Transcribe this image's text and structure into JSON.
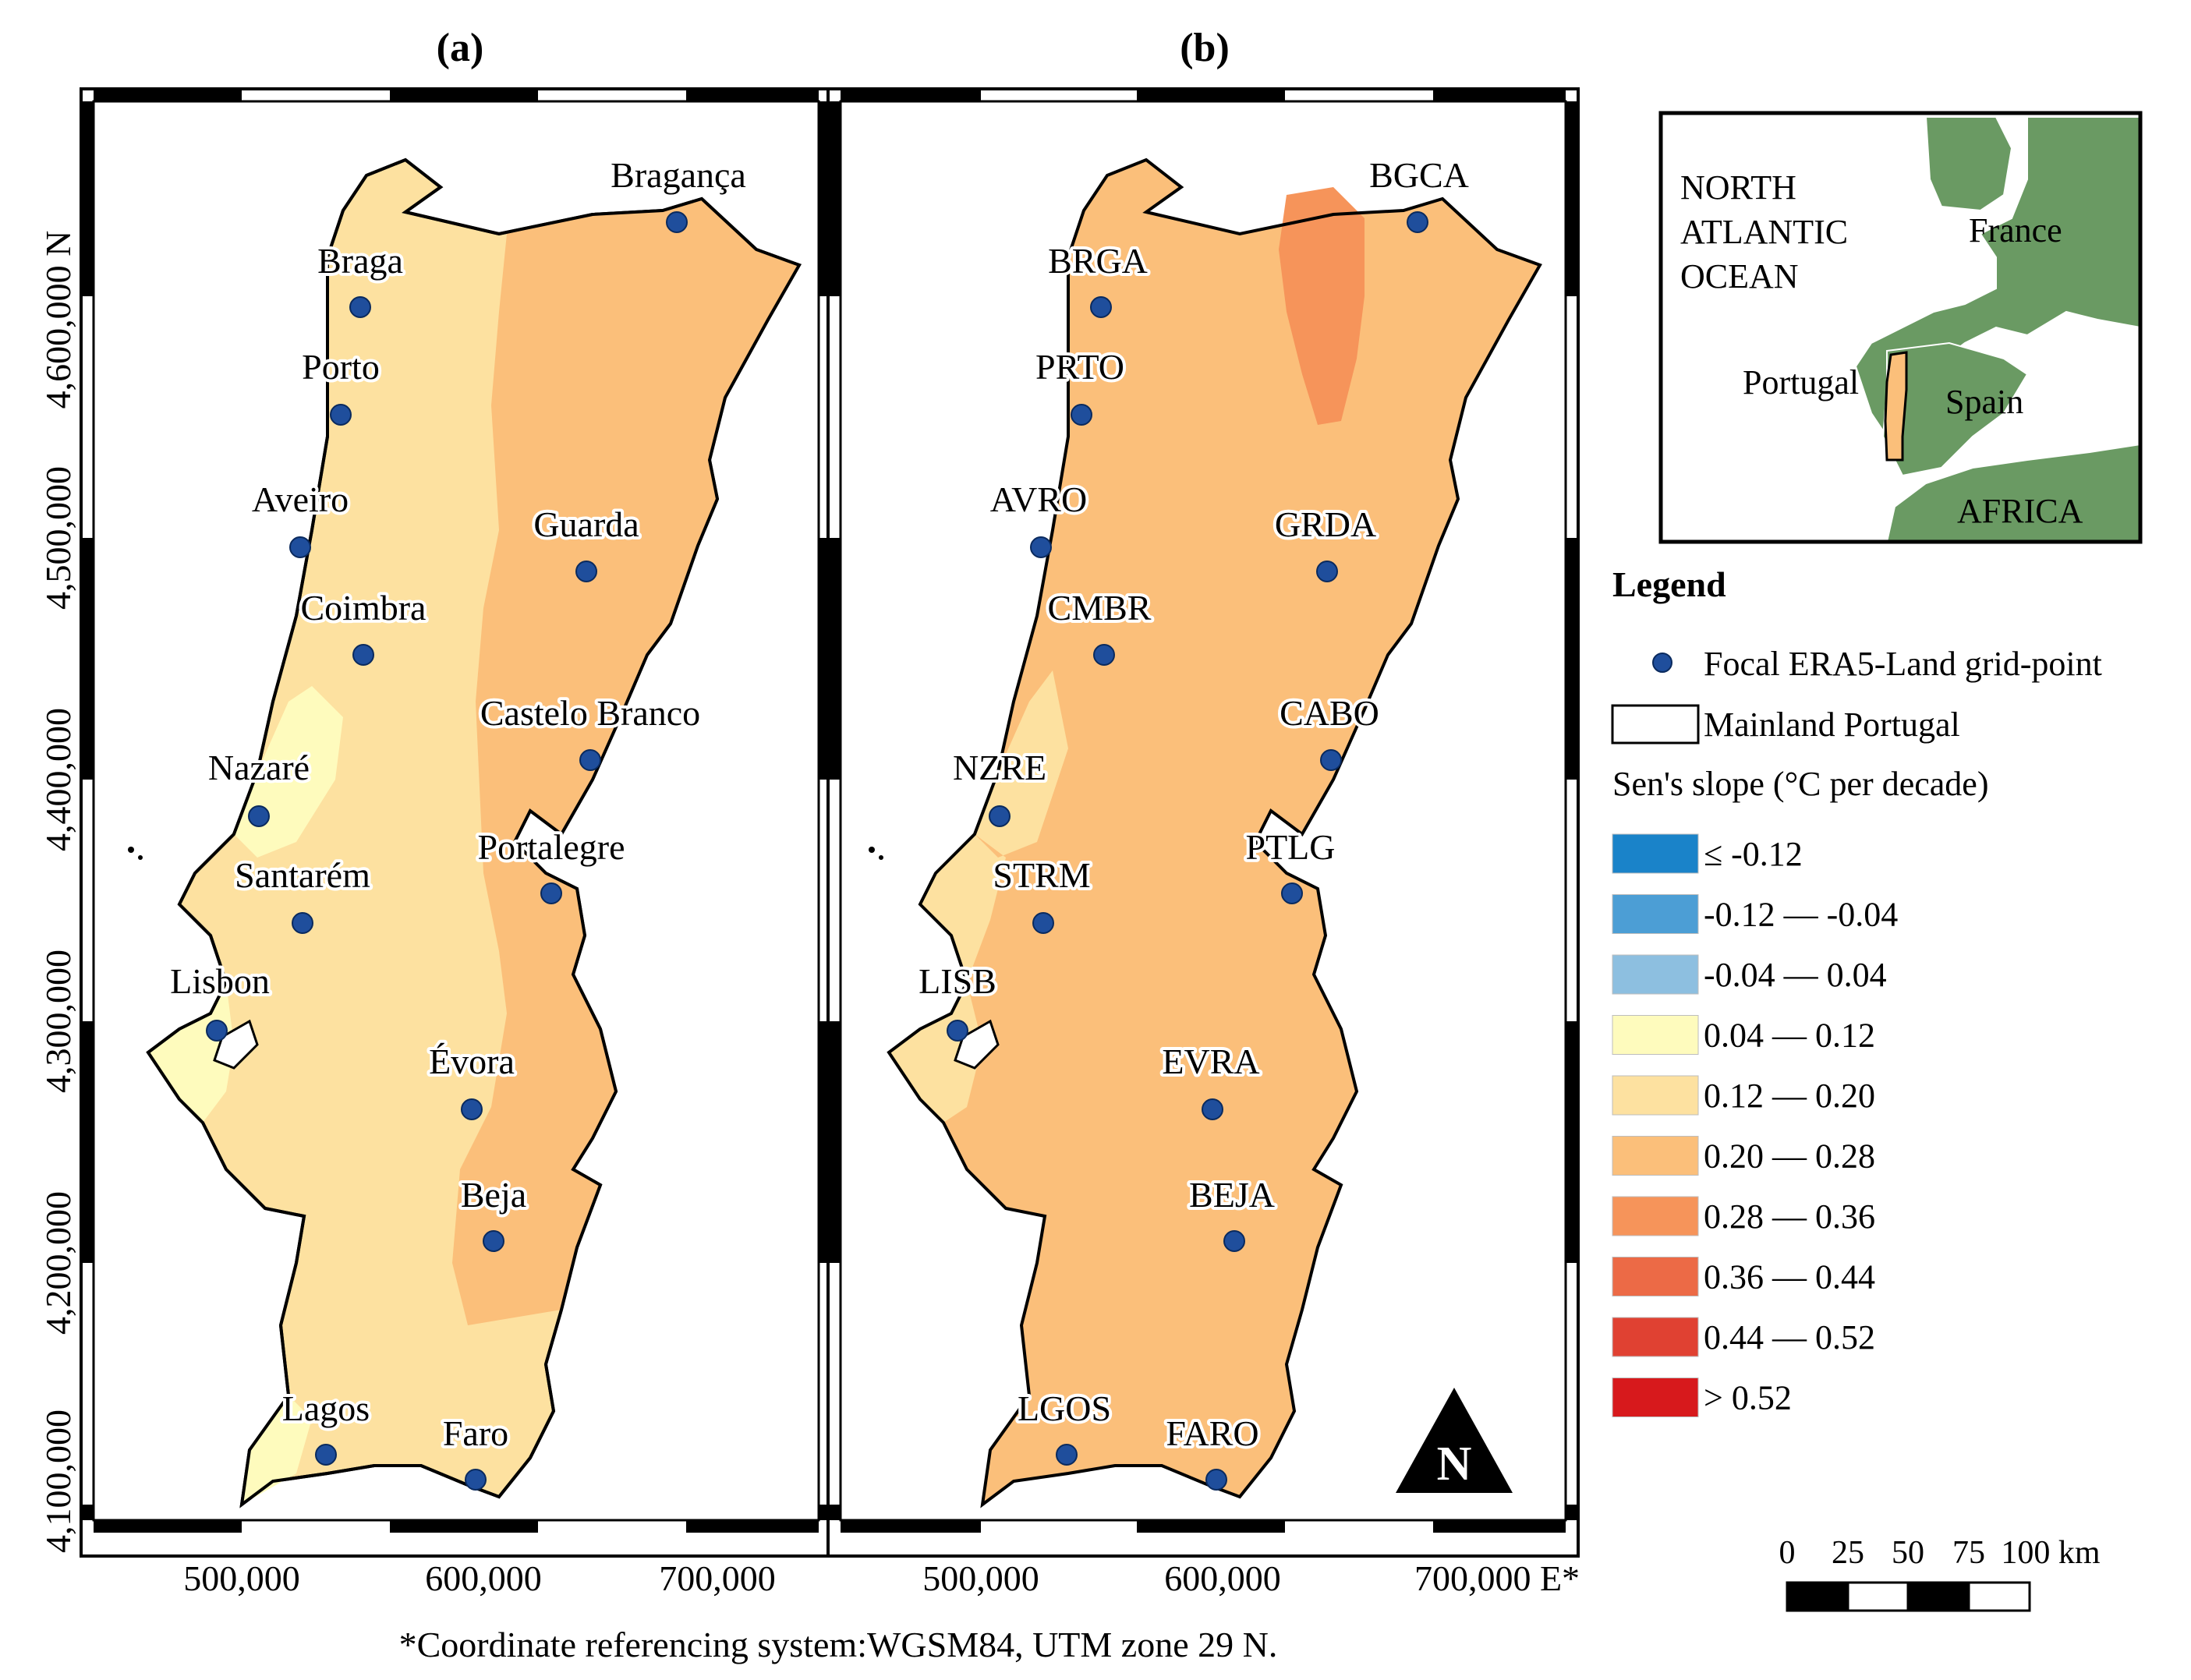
{
  "panels": [
    {
      "id": "a",
      "title": "(a)",
      "cities": [
        {
          "name": "Bragança"
        },
        {
          "name": "Braga"
        },
        {
          "name": "Porto"
        },
        {
          "name": "Aveiro"
        },
        {
          "name": "Guarda"
        },
        {
          "name": "Coimbra"
        },
        {
          "name": "Castelo Branco"
        },
        {
          "name": "Nazaré"
        },
        {
          "name": "Portalegre"
        },
        {
          "name": "Santarém"
        },
        {
          "name": "Lisbon"
        },
        {
          "name": "Évora"
        },
        {
          "name": "Beja"
        },
        {
          "name": "Lagos"
        },
        {
          "name": "Faro"
        }
      ]
    },
    {
      "id": "b",
      "title": "(b)",
      "cities": [
        {
          "name": "BGCA"
        },
        {
          "name": "BRGA"
        },
        {
          "name": "PRTO"
        },
        {
          "name": "AVRO"
        },
        {
          "name": "GRDA"
        },
        {
          "name": "CMBR"
        },
        {
          "name": "CABO"
        },
        {
          "name": "NZRE"
        },
        {
          "name": "PTLG"
        },
        {
          "name": "STRM"
        },
        {
          "name": "LISB"
        },
        {
          "name": "EVRA"
        },
        {
          "name": "BEJA"
        },
        {
          "name": "LGOS"
        },
        {
          "name": "FARO"
        }
      ]
    }
  ],
  "y_ticks": [
    "4,600,000 N",
    "4,500,000",
    "4,400,000",
    "4,300,000",
    "4,200,000",
    "4,100,000"
  ],
  "x_ticks_a": [
    "500,000",
    "600,000",
    "700,000"
  ],
  "x_ticks_b": [
    "500,000",
    "600,000",
    "700,000 E*"
  ],
  "crs_note": "*Coordinate referencing system:WGSM84, UTM zone 29 N.",
  "north_arrow": "N",
  "inset": {
    "labels": {
      "ocean": [
        "NORTH",
        "ATLANTIC",
        "OCEAN"
      ],
      "france": "France",
      "portugal": "Portugal",
      "spain": "Spain",
      "africa": "AFRICA"
    },
    "land_color": "#6a9a63"
  },
  "legend": {
    "title": "Legend",
    "point_label": "Focal ERA5-Land grid-point",
    "boundary_label": "Mainland Portugal",
    "scale_title": "Sen's slope (°C per decade)",
    "classes": [
      {
        "label": "≤ -0.12",
        "color": "#1a83c9"
      },
      {
        "label": "-0.12 — -0.04",
        "color": "#4c9ed5"
      },
      {
        "label": "-0.04 — 0.04",
        "color": "#8dbfe0"
      },
      {
        "label": "0.04 — 0.12",
        "color": "#fefbbd"
      },
      {
        "label": "0.12 — 0.20",
        "color": "#fde1a0"
      },
      {
        "label": "0.20 — 0.28",
        "color": "#fbbf7a"
      },
      {
        "label": "0.28 — 0.36",
        "color": "#f6945a"
      },
      {
        "label": "0.36 — 0.44",
        "color": "#ec6a46"
      },
      {
        "label": "0.44 — 0.52",
        "color": "#e04132"
      },
      {
        "label": "> 0.52",
        "color": "#d7191c"
      }
    ]
  },
  "scalebar": {
    "labels": [
      "0",
      "25",
      "50",
      "75",
      "100 km"
    ]
  },
  "colors": {
    "point": "#1f4e9c",
    "point_stroke": "#0a2a5e"
  }
}
